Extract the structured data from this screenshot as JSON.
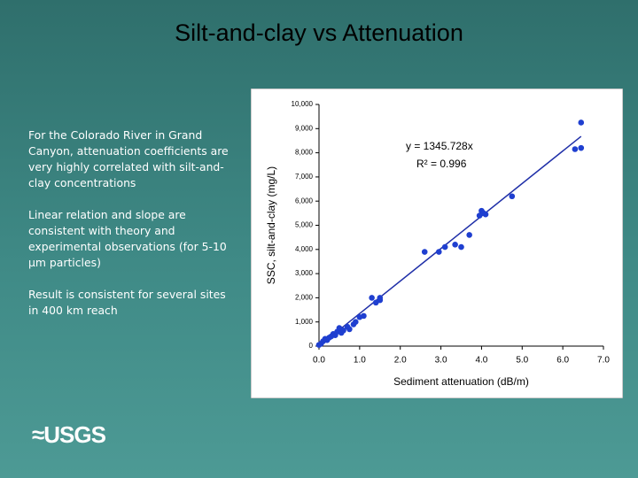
{
  "slide": {
    "title": "Silt-and-clay vs Attenuation",
    "paragraphs": [
      "For the Colorado River in Grand Canyon, attenuation coefficients are very highly correlated with silt-and-clay concentrations",
      "Linear relation and slope are consistent with theory and experimental observations (for 5-10 µm particles)",
      "Result is consistent for several sites in 400 km reach"
    ],
    "logo": "USGS"
  },
  "chart_data": {
    "type": "scatter",
    "x_label": "Sediment attenuation (dB/m)",
    "y_label": "SSC, silt-and-clay (mg/L)",
    "annotations": [
      "y = 1345.728x",
      "R² = 0.996"
    ],
    "fit": {
      "slope": 1345.728,
      "color": "#1f2fa8"
    },
    "color": "#1f3fd0",
    "x": [
      0.0,
      0.05,
      0.1,
      0.15,
      0.2,
      0.25,
      0.3,
      0.35,
      0.4,
      0.45,
      0.5,
      0.55,
      0.6,
      0.7,
      0.75,
      0.85,
      0.9,
      1.0,
      1.1,
      1.3,
      1.4,
      1.5,
      1.5,
      2.6,
      2.95,
      3.1,
      3.35,
      3.5,
      3.7,
      3.95,
      4.0,
      4.05,
      4.1,
      4.75,
      6.3,
      6.45,
      6.45
    ],
    "values": [
      50,
      100,
      200,
      300,
      250,
      350,
      400,
      500,
      450,
      600,
      750,
      550,
      650,
      800,
      700,
      900,
      1000,
      1200,
      1250,
      2000,
      1800,
      1900,
      2000,
      3900,
      3900,
      4100,
      4200,
      4100,
      4600,
      5400,
      5600,
      5500,
      5450,
      6200,
      8150,
      8200,
      9250
    ],
    "xlim": [
      0,
      7
    ],
    "ylim": [
      0,
      10000
    ],
    "xticks": [
      {
        "value": 0,
        "label": "0.0"
      },
      {
        "value": 1,
        "label": "1.0"
      },
      {
        "value": 2,
        "label": "2.0"
      },
      {
        "value": 3,
        "label": "3.0"
      },
      {
        "value": 4,
        "label": "4.0"
      },
      {
        "value": 5,
        "label": "5.0"
      },
      {
        "value": 6,
        "label": "6.0"
      },
      {
        "value": 7,
        "label": "7.0"
      }
    ],
    "yticks": [
      0,
      {
        "value": 1000,
        "label": "1,000"
      },
      {
        "value": 2000,
        "label": "2,000"
      },
      {
        "value": 3000,
        "label": "3,000"
      },
      {
        "value": 4000,
        "label": "4,000"
      },
      {
        "value": 5000,
        "label": "5,000"
      },
      {
        "value": 6000,
        "label": "6,000"
      },
      {
        "value": 7000,
        "label": "7,000"
      },
      {
        "value": 8000,
        "label": "8,000"
      },
      {
        "value": 9000,
        "label": "9,000"
      },
      {
        "value": 10000,
        "label": "10,000"
      }
    ]
  }
}
